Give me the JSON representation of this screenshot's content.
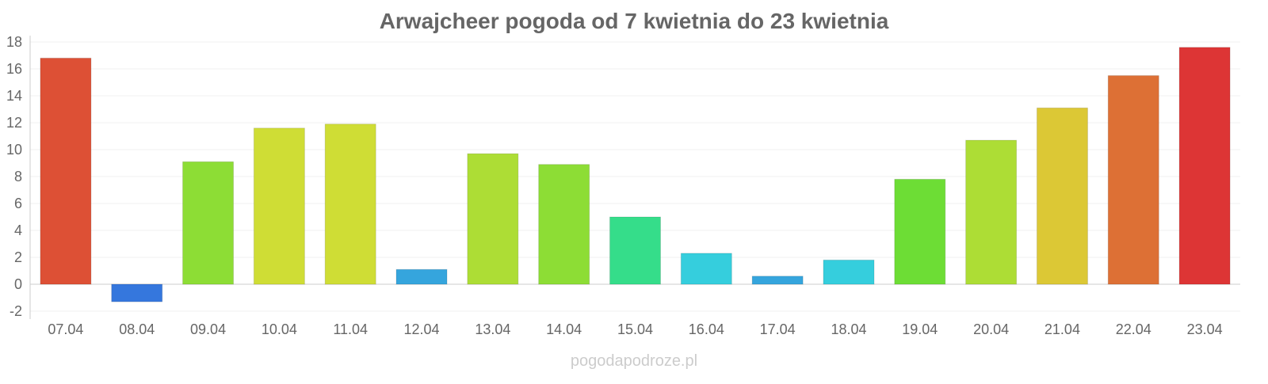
{
  "chart_data": {
    "type": "bar",
    "title": "Arwajcheer pogoda od 7 kwietnia do 23 kwietnia",
    "xlabel": "",
    "ylabel": "",
    "ylim": [
      -2,
      18
    ],
    "yticks": [
      -2,
      0,
      2,
      4,
      6,
      8,
      10,
      12,
      14,
      16,
      18
    ],
    "grid": true,
    "categories": [
      "07.04",
      "08.04",
      "09.04",
      "10.04",
      "11.04",
      "12.04",
      "13.04",
      "14.04",
      "15.04",
      "16.04",
      "17.04",
      "18.04",
      "19.04",
      "20.04",
      "21.04",
      "22.04",
      "23.04"
    ],
    "values": [
      16.8,
      -1.3,
      9.1,
      11.6,
      11.9,
      1.1,
      9.7,
      8.9,
      5.0,
      2.3,
      0.6,
      1.8,
      7.8,
      10.7,
      13.1,
      15.5,
      17.6
    ],
    "colors": [
      "#dd5035",
      "#3577dd",
      "#8ddd35",
      "#cfdd35",
      "#cfdd35",
      "#35a5dd",
      "#addd35",
      "#8ddd35",
      "#35dd8a",
      "#35cedd",
      "#35a5dd",
      "#35cedd",
      "#6ddd35",
      "#addd35",
      "#dcc835",
      "#dd7035",
      "#dd3535"
    ]
  },
  "watermark": "pogodapodroze.pl"
}
